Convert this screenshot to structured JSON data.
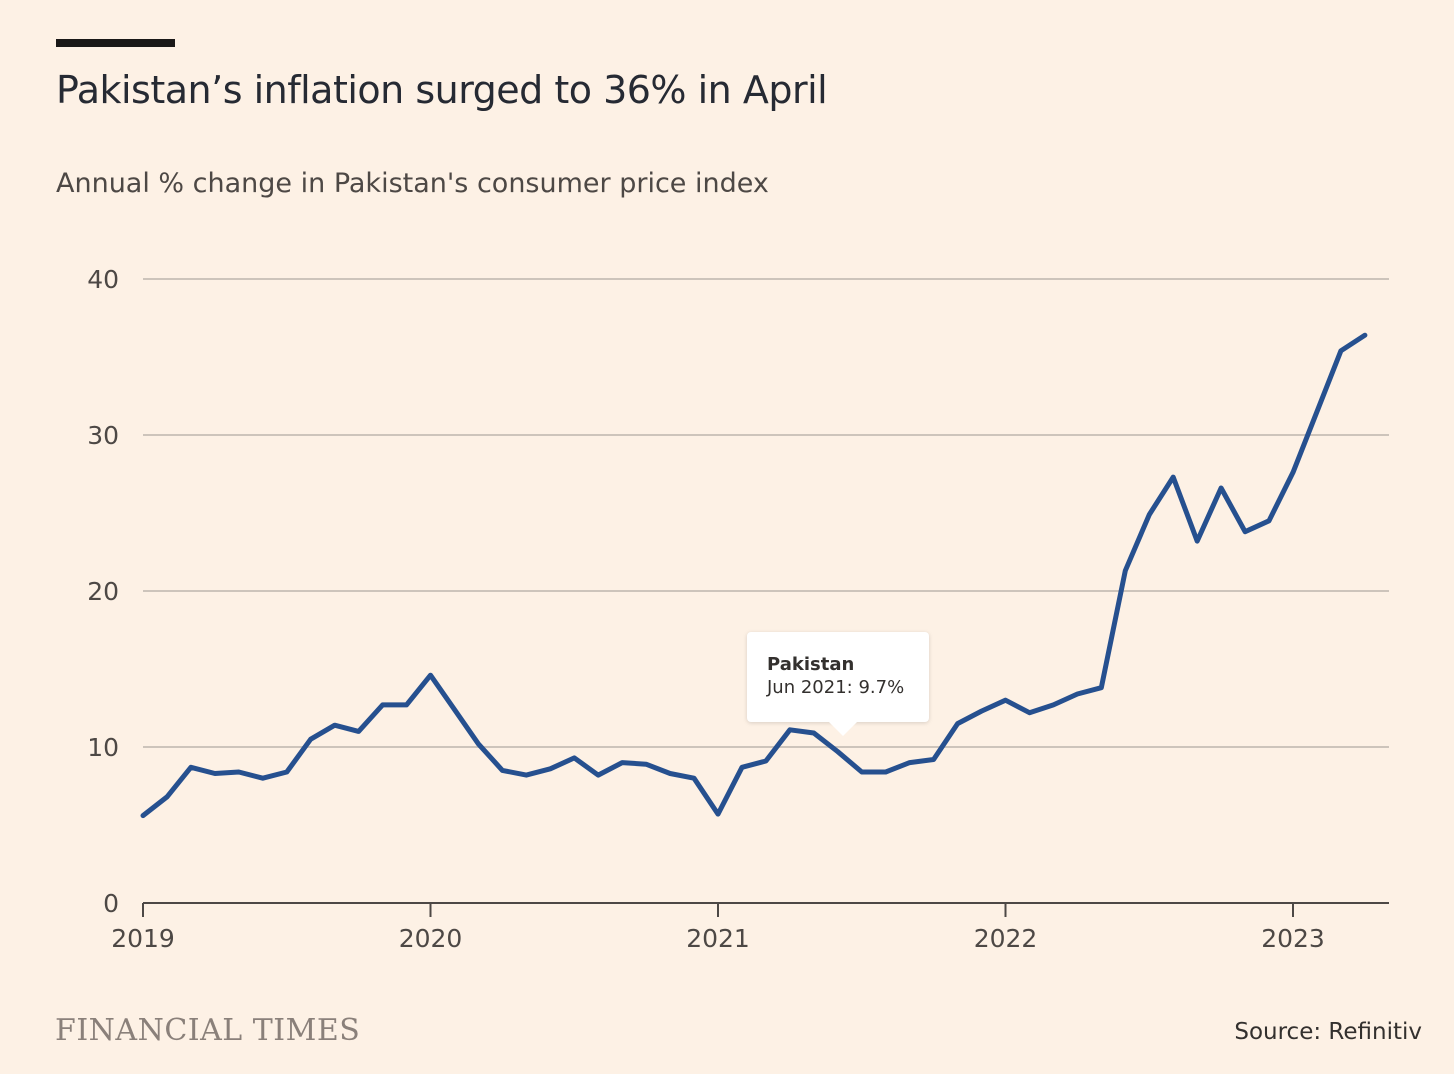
{
  "header": {
    "title": "Pakistan’s inflation surged to 36% in April",
    "subtitle": "Annual % change in Pakistan's consumer price index"
  },
  "tooltip": {
    "series": "Pakistan",
    "value": "Jun 2021: 9.7%"
  },
  "footer": {
    "brand": "FINANCIAL TIMES",
    "source": "Source: Refinitiv"
  },
  "colors": {
    "background": "#fdf1e5",
    "line": "#26508f",
    "grid": "#cdc4bb"
  },
  "chart_data": {
    "type": "line",
    "title": "Pakistan’s inflation surged to 36% in April",
    "subtitle": "Annual % change in Pakistan's consumer price index",
    "xlabel": "",
    "ylabel": "",
    "ylim": [
      0,
      40
    ],
    "xlim": [
      "2019-01",
      "2023-05"
    ],
    "y_ticks": [
      "0",
      "10",
      "20",
      "30",
      "40"
    ],
    "x_ticks": [
      "2019",
      "2020",
      "2021",
      "2022",
      "2023"
    ],
    "grid": true,
    "legend": "none",
    "series": [
      {
        "name": "Pakistan",
        "x": [
          "2019-01",
          "2019-02",
          "2019-03",
          "2019-04",
          "2019-05",
          "2019-06",
          "2019-07",
          "2019-08",
          "2019-09",
          "2019-10",
          "2019-11",
          "2019-12",
          "2020-01",
          "2020-02",
          "2020-03",
          "2020-04",
          "2020-05",
          "2020-06",
          "2020-07",
          "2020-08",
          "2020-09",
          "2020-10",
          "2020-11",
          "2020-12",
          "2021-01",
          "2021-02",
          "2021-03",
          "2021-04",
          "2021-05",
          "2021-06",
          "2021-07",
          "2021-08",
          "2021-09",
          "2021-10",
          "2021-11",
          "2021-12",
          "2022-01",
          "2022-02",
          "2022-03",
          "2022-04",
          "2022-05",
          "2022-06",
          "2022-07",
          "2022-08",
          "2022-09",
          "2022-10",
          "2022-11",
          "2022-12",
          "2023-01",
          "2023-02",
          "2023-03",
          "2023-04"
        ],
        "values": [
          5.6,
          6.8,
          8.7,
          8.3,
          8.4,
          8.0,
          8.4,
          10.5,
          11.4,
          11.0,
          12.7,
          12.7,
          14.6,
          12.4,
          10.2,
          8.5,
          8.2,
          8.6,
          9.3,
          8.2,
          9.0,
          8.9,
          8.3,
          8.0,
          5.7,
          8.7,
          9.1,
          11.1,
          10.9,
          9.7,
          8.4,
          8.4,
          9.0,
          9.2,
          11.5,
          12.3,
          13.0,
          12.2,
          12.7,
          13.4,
          13.8,
          21.3,
          24.9,
          27.3,
          23.2,
          26.6,
          23.8,
          24.5,
          27.6,
          31.5,
          35.4,
          36.4
        ]
      }
    ],
    "highlight": {
      "x": "2021-06",
      "value": 9.7
    }
  }
}
